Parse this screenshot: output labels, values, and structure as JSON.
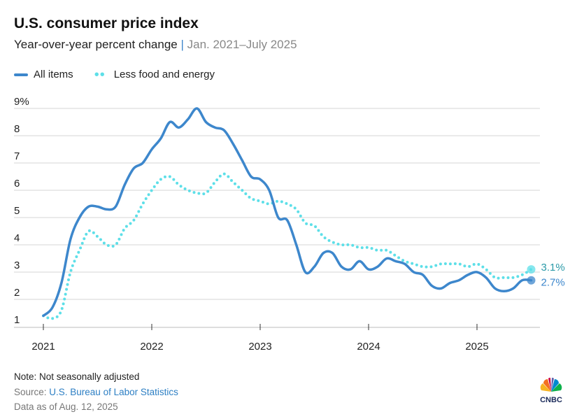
{
  "title": "U.S. consumer price index",
  "subtitle": "Year-over-year percent change",
  "subtitle_sep": "|",
  "subtitle_range": "Jan. 2021–July 2025",
  "legend": {
    "all_items": "All items",
    "core": "Less food and energy"
  },
  "footer": {
    "note": "Note: Not seasonally adjusted",
    "source_prefix": "Source: ",
    "source_link": "U.S. Bureau of Labor Statistics",
    "as_of": "Data as of Aug. 12, 2025",
    "logo": "CNBC"
  },
  "colors": {
    "all_items": "#3d87cc",
    "core": "#5ddfe8",
    "core_label": "#2a9aa8",
    "grid": "#d6d6d6"
  },
  "chart_data": {
    "type": "line",
    "title": "U.S. consumer price index",
    "ylabel": "Year-over-year percent change",
    "ylim": [
      1,
      9
    ],
    "yticks": [
      "1",
      "2",
      "3",
      "4",
      "5",
      "6",
      "7",
      "8",
      "9%"
    ],
    "xticks": [
      "2021",
      "2022",
      "2023",
      "2024",
      "2025"
    ],
    "x_start": "2021-01",
    "grid": true,
    "legend_position": "top-left",
    "series": [
      {
        "name": "All items",
        "end_label": "2.7%",
        "values": [
          1.4,
          1.7,
          2.6,
          4.2,
          5.0,
          5.4,
          5.4,
          5.3,
          5.4,
          6.2,
          6.8,
          7.0,
          7.5,
          7.9,
          8.5,
          8.3,
          8.6,
          9.0,
          8.5,
          8.3,
          8.2,
          7.7,
          7.1,
          6.5,
          6.4,
          6.0,
          5.0,
          4.9,
          4.0,
          3.0,
          3.2,
          3.7,
          3.7,
          3.2,
          3.1,
          3.4,
          3.1,
          3.2,
          3.5,
          3.4,
          3.3,
          3.0,
          2.9,
          2.5,
          2.4,
          2.6,
          2.7,
          2.9,
          3.0,
          2.8,
          2.4,
          2.3,
          2.4,
          2.7,
          2.7
        ]
      },
      {
        "name": "Less food and energy",
        "end_label": "3.1%",
        "values": [
          1.4,
          1.3,
          1.6,
          3.0,
          3.8,
          4.5,
          4.3,
          4.0,
          4.0,
          4.6,
          4.9,
          5.5,
          6.0,
          6.4,
          6.5,
          6.2,
          6.0,
          5.9,
          5.9,
          6.3,
          6.6,
          6.3,
          6.0,
          5.7,
          5.6,
          5.5,
          5.6,
          5.5,
          5.3,
          4.8,
          4.7,
          4.3,
          4.1,
          4.0,
          4.0,
          3.9,
          3.9,
          3.8,
          3.8,
          3.6,
          3.4,
          3.3,
          3.2,
          3.2,
          3.3,
          3.3,
          3.3,
          3.2,
          3.3,
          3.1,
          2.8,
          2.8,
          2.8,
          2.9,
          3.1
        ]
      }
    ]
  }
}
